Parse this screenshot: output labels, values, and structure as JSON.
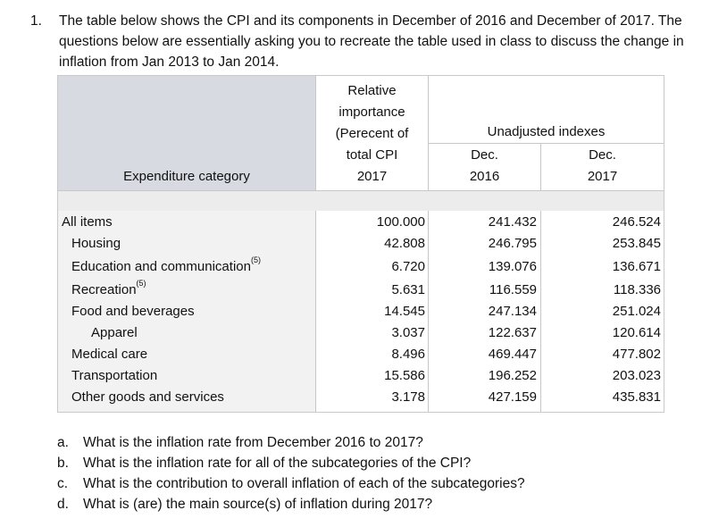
{
  "question": {
    "number": "1.",
    "text": "The table below shows the CPI and its components in December of 2016 and December of 2017. The questions below are essentially asking you to recreate the table used in class to discuss the change in inflation from Jan 2013 to Jan 2014."
  },
  "table": {
    "header": {
      "category": "Expenditure category",
      "relative_lines": [
        "Relative",
        "importance",
        "(Perecent of",
        "total CPI",
        "2017"
      ],
      "unadjusted": "Unadjusted indexes",
      "dec2016_lines": [
        "Dec.",
        "2016"
      ],
      "dec2017_lines": [
        "Dec.",
        "2017"
      ]
    },
    "rows": [
      {
        "category": "All items",
        "sup": "",
        "indent": 0,
        "rel": "100.000",
        "dec2016": "241.432",
        "dec2017": "246.524"
      },
      {
        "category": "Housing",
        "sup": "",
        "indent": 1,
        "rel": "42.808",
        "dec2016": "246.795",
        "dec2017": "253.845"
      },
      {
        "category": "Education and communication",
        "sup": "(5)",
        "indent": 1,
        "rel": "6.720",
        "dec2016": "139.076",
        "dec2017": "136.671"
      },
      {
        "category": "Recreation",
        "sup": "(5)",
        "indent": 1,
        "rel": "5.631",
        "dec2016": "116.559",
        "dec2017": "118.336"
      },
      {
        "category": "Food and beverages",
        "sup": "",
        "indent": 1,
        "rel": "14.545",
        "dec2016": "247.134",
        "dec2017": "251.024"
      },
      {
        "category": "Apparel",
        "sup": "",
        "indent": 2,
        "rel": "3.037",
        "dec2016": "122.637",
        "dec2017": "120.614"
      },
      {
        "category": "Medical care",
        "sup": "",
        "indent": 1,
        "rel": "8.496",
        "dec2016": "469.447",
        "dec2017": "477.802"
      },
      {
        "category": "Transportation",
        "sup": "",
        "indent": 1,
        "rel": "15.586",
        "dec2016": "196.252",
        "dec2017": "203.023"
      },
      {
        "category": "Other goods and services",
        "sup": "",
        "indent": 1,
        "rel": "3.178",
        "dec2016": "427.159",
        "dec2017": "435.831"
      }
    ]
  },
  "subquestions": [
    {
      "label": "a.",
      "text": "What is the inflation rate from December 2016 to 2017?"
    },
    {
      "label": "b.",
      "text": "What is the inflation rate for all of the subcategories of the CPI?"
    },
    {
      "label": "c.",
      "text": "What is the contribution to overall inflation of each of the subcategories?"
    },
    {
      "label": "d.",
      "text": "What is  (are) the main source(s) of inflation during 2017?"
    }
  ]
}
